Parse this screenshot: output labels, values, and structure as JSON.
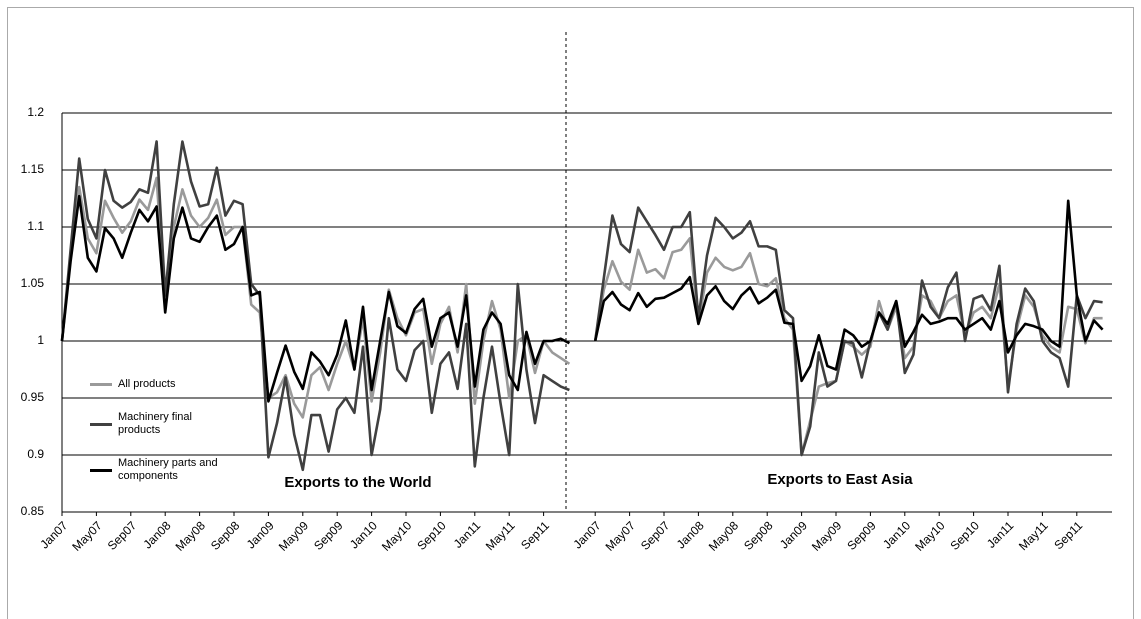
{
  "chart_data": {
    "type": "line",
    "annotations": [
      "Exports to the World",
      "Exports to East Asia"
    ],
    "categories": [
      "Jan07",
      null,
      null,
      null,
      "May07",
      null,
      null,
      null,
      "Sep07",
      null,
      null,
      null,
      "Jan08",
      null,
      null,
      null,
      "May08",
      null,
      null,
      null,
      "Sep08",
      null,
      null,
      null,
      "Jan09",
      null,
      null,
      null,
      "May09",
      null,
      null,
      null,
      "Sep09",
      null,
      null,
      null,
      "Jan10",
      null,
      null,
      null,
      "May10",
      null,
      null,
      null,
      "Sep10",
      null,
      null,
      null,
      "Jan11",
      null,
      null,
      null,
      "May11",
      null,
      null,
      null,
      "Sep11",
      null,
      null,
      null,
      null,
      null,
      "Jan07",
      null,
      null,
      null,
      "May07",
      null,
      null,
      null,
      "Sep07",
      null,
      null,
      null,
      "Jan08",
      null,
      null,
      null,
      "May08",
      null,
      null,
      null,
      "Sep08",
      null,
      null,
      null,
      "Jan09",
      null,
      null,
      null,
      "May09",
      null,
      null,
      null,
      "Sep09",
      null,
      null,
      null,
      "Jan10",
      null,
      null,
      null,
      "May10",
      null,
      null,
      null,
      "Sep10",
      null,
      null,
      null,
      "Jan11",
      null,
      null,
      null,
      "May11",
      null,
      null,
      null,
      "Sep11",
      null,
      null,
      null
    ],
    "series": [
      {
        "name": "All products",
        "color": "#9a9a9a",
        "values": [
          1.0,
          1.075,
          1.135,
          1.09,
          1.077,
          1.123,
          1.108,
          1.095,
          1.105,
          1.124,
          1.115,
          1.143,
          1.03,
          1.1,
          1.133,
          1.11,
          1.1,
          1.108,
          1.124,
          1.093,
          1.1,
          1.1,
          1.032,
          1.025,
          0.95,
          0.955,
          0.97,
          0.945,
          0.933,
          0.97,
          0.977,
          0.957,
          0.98,
          1.0,
          0.975,
          1.02,
          0.947,
          0.99,
          1.045,
          1.02,
          1.005,
          1.025,
          1.028,
          0.98,
          1.015,
          1.03,
          0.99,
          1.05,
          0.945,
          1.0,
          1.035,
          1.01,
          0.95,
          1.0,
          1.005,
          0.972,
          1.0,
          0.99,
          0.985,
          0.98,
          null,
          null,
          1.0,
          1.045,
          1.07,
          1.052,
          1.045,
          1.08,
          1.06,
          1.063,
          1.055,
          1.078,
          1.08,
          1.09,
          1.015,
          1.06,
          1.073,
          1.065,
          1.062,
          1.065,
          1.077,
          1.05,
          1.048,
          1.055,
          1.02,
          1.01,
          0.9,
          0.93,
          0.96,
          0.963,
          0.965,
          1.0,
          0.995,
          0.988,
          0.995,
          1.035,
          1.01,
          1.03,
          0.985,
          0.995,
          1.04,
          1.035,
          1.02,
          1.035,
          1.04,
          1.005,
          1.025,
          1.03,
          1.02,
          1.05,
          0.96,
          1.01,
          1.04,
          1.03,
          1.005,
          0.995,
          0.99,
          1.03,
          1.028,
          0.998,
          1.02,
          1.02
        ]
      },
      {
        "name": "Machinery final products",
        "color": "#404040",
        "values": [
          1.0,
          1.08,
          1.16,
          1.107,
          1.09,
          1.15,
          1.123,
          1.117,
          1.122,
          1.133,
          1.13,
          1.175,
          1.04,
          1.12,
          1.175,
          1.14,
          1.118,
          1.12,
          1.152,
          1.11,
          1.123,
          1.12,
          1.05,
          1.04,
          0.898,
          0.928,
          0.968,
          0.918,
          0.887,
          0.935,
          0.935,
          0.903,
          0.94,
          0.95,
          0.937,
          0.995,
          0.9,
          0.94,
          1.02,
          0.975,
          0.965,
          0.992,
          1.0,
          0.937,
          0.98,
          0.99,
          0.958,
          1.015,
          0.89,
          0.95,
          0.995,
          0.945,
          0.9,
          1.05,
          0.975,
          0.928,
          0.97,
          0.965,
          0.96,
          0.957,
          null,
          null,
          1.0,
          1.055,
          1.11,
          1.085,
          1.078,
          1.117,
          1.105,
          1.093,
          1.08,
          1.1,
          1.1,
          1.113,
          1.02,
          1.075,
          1.108,
          1.1,
          1.09,
          1.095,
          1.105,
          1.083,
          1.083,
          1.08,
          1.027,
          1.02,
          0.9,
          0.925,
          0.99,
          0.96,
          0.965,
          1.0,
          0.998,
          0.968,
          1.0,
          1.025,
          1.01,
          1.035,
          0.972,
          0.988,
          1.053,
          1.03,
          1.02,
          1.047,
          1.06,
          1.0,
          1.037,
          1.04,
          1.027,
          1.066,
          0.955,
          1.015,
          1.046,
          1.035,
          1.0,
          0.99,
          0.985,
          0.96,
          1.04,
          1.02,
          1.035,
          1.034
        ]
      },
      {
        "name": "Machinery parts and components",
        "color": "#000000",
        "values": [
          1.0,
          1.07,
          1.127,
          1.073,
          1.061,
          1.099,
          1.09,
          1.073,
          1.095,
          1.115,
          1.105,
          1.118,
          1.025,
          1.09,
          1.117,
          1.09,
          1.087,
          1.1,
          1.11,
          1.08,
          1.085,
          1.1,
          1.04,
          1.043,
          0.947,
          0.972,
          0.996,
          0.973,
          0.958,
          0.99,
          0.982,
          0.97,
          0.988,
          1.018,
          0.975,
          1.03,
          0.957,
          1.0,
          1.043,
          1.013,
          1.007,
          1.028,
          1.037,
          0.995,
          1.02,
          1.025,
          0.995,
          1.04,
          0.96,
          1.01,
          1.025,
          1.015,
          0.97,
          0.957,
          1.008,
          0.98,
          1.0,
          1.0,
          1.002,
          0.998,
          null,
          null,
          1.0,
          1.035,
          1.043,
          1.032,
          1.027,
          1.042,
          1.03,
          1.037,
          1.038,
          1.042,
          1.046,
          1.056,
          1.015,
          1.04,
          1.048,
          1.035,
          1.028,
          1.04,
          1.047,
          1.033,
          1.038,
          1.045,
          1.016,
          1.015,
          0.965,
          0.978,
          1.005,
          0.978,
          0.975,
          1.01,
          1.005,
          0.995,
          1.0,
          1.025,
          1.015,
          1.035,
          0.995,
          1.008,
          1.023,
          1.015,
          1.017,
          1.02,
          1.02,
          1.01,
          1.015,
          1.02,
          1.01,
          1.035,
          0.99,
          1.005,
          1.015,
          1.013,
          1.01,
          1.0,
          0.995,
          1.123,
          1.04,
          1.0,
          1.018,
          1.01
        ]
      }
    ],
    "ylim": [
      0.85,
      1.2
    ],
    "yticks": [
      0.85,
      0.9,
      0.95,
      1,
      1.05,
      1.1,
      1.15,
      1.2
    ],
    "grid": true,
    "legend": "lower left"
  }
}
